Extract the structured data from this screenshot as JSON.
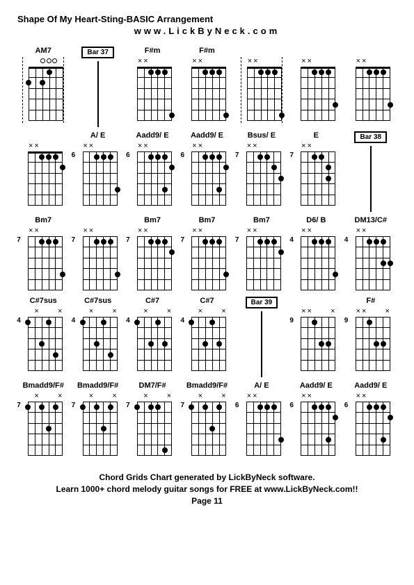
{
  "title": "Shape Of My Heart-Sting-BASIC Arrangement",
  "subtitle": "www.LickByNeck.com",
  "footer_line1": "Chord Grids Chart generated by LickByNeck software.",
  "footer_line2": "Learn 1000+ chord melody guitar songs for FREE at www.LickByNeck.com!!",
  "footer_page": "Page 11",
  "rows": [
    [
      {
        "type": "chord",
        "name": "AM7",
        "fret": "",
        "markers": [
          "",
          "",
          "o",
          "o",
          "o",
          ""
        ],
        "dots": [
          [
            1,
            3
          ],
          [
            2,
            0
          ],
          [
            2,
            2
          ]
        ],
        "dashed": true
      },
      {
        "type": "bar",
        "label": "Bar 37"
      },
      {
        "type": "chord",
        "name": "F#m",
        "fret": "",
        "markers": [
          "x",
          "x",
          "",
          "",
          "",
          ""
        ],
        "dots": [
          [
            1,
            2
          ],
          [
            1,
            3
          ],
          [
            1,
            4
          ],
          [
            5,
            5
          ]
        ]
      },
      {
        "type": "chord",
        "name": "F#m",
        "fret": "",
        "markers": [
          "x",
          "x",
          "",
          "",
          "",
          ""
        ],
        "dots": [
          [
            1,
            2
          ],
          [
            1,
            3
          ],
          [
            1,
            4
          ],
          [
            5,
            5
          ]
        ]
      },
      {
        "type": "chord",
        "name": "",
        "fret": "",
        "markers": [
          "x",
          "x",
          "",
          "",
          "",
          ""
        ],
        "dots": [
          [
            1,
            2
          ],
          [
            1,
            3
          ],
          [
            1,
            4
          ],
          [
            5,
            5
          ]
        ],
        "dashed": true
      },
      {
        "type": "chord",
        "name": "",
        "fret": "",
        "markers": [
          "x",
          "x",
          "",
          "",
          "",
          ""
        ],
        "dots": [
          [
            1,
            2
          ],
          [
            1,
            3
          ],
          [
            1,
            4
          ],
          [
            4,
            5
          ]
        ]
      },
      {
        "type": "chord",
        "name": "",
        "fret": "",
        "markers": [
          "x",
          "x",
          "",
          "",
          "",
          ""
        ],
        "dots": [
          [
            1,
            2
          ],
          [
            1,
            3
          ],
          [
            1,
            4
          ],
          [
            4,
            5
          ]
        ]
      }
    ],
    [
      {
        "type": "chord",
        "name": "",
        "fret": "",
        "markers": [
          "x",
          "x",
          "",
          "",
          "",
          ""
        ],
        "dots": [
          [
            1,
            2
          ],
          [
            1,
            3
          ],
          [
            1,
            4
          ],
          [
            2,
            5
          ]
        ]
      },
      {
        "type": "chord",
        "name": "A/ E",
        "fret": "6",
        "markers": [
          "x",
          "x",
          "",
          "",
          "",
          ""
        ],
        "dots": [
          [
            1,
            2
          ],
          [
            1,
            3
          ],
          [
            1,
            4
          ],
          [
            4,
            5
          ]
        ]
      },
      {
        "type": "chord",
        "name": "Aadd9/ E",
        "fret": "6",
        "markers": [
          "x",
          "x",
          "",
          "",
          "",
          ""
        ],
        "dots": [
          [
            1,
            2
          ],
          [
            1,
            3
          ],
          [
            1,
            4
          ],
          [
            4,
            4
          ],
          [
            2,
            5
          ]
        ]
      },
      {
        "type": "chord",
        "name": "Aadd9/ E",
        "fret": "6",
        "markers": [
          "x",
          "x",
          "",
          "",
          "",
          ""
        ],
        "dots": [
          [
            1,
            2
          ],
          [
            1,
            3
          ],
          [
            1,
            4
          ],
          [
            4,
            4
          ],
          [
            2,
            5
          ]
        ]
      },
      {
        "type": "chord",
        "name": "Bsus/ E",
        "fret": "7",
        "markers": [
          "x",
          "x",
          "",
          "",
          "",
          ""
        ],
        "dots": [
          [
            1,
            2
          ],
          [
            1,
            3
          ],
          [
            2,
            4
          ],
          [
            3,
            5
          ]
        ]
      },
      {
        "type": "chord",
        "name": "E",
        "fret": "7",
        "markers": [
          "x",
          "x",
          "",
          "",
          "",
          ""
        ],
        "dots": [
          [
            1,
            2
          ],
          [
            1,
            3
          ],
          [
            2,
            4
          ],
          [
            3,
            4
          ]
        ]
      },
      {
        "type": "bar",
        "label": "Bar 38"
      }
    ],
    [
      {
        "type": "chord",
        "name": "Bm7",
        "fret": "7",
        "markers": [
          "x",
          "x",
          "",
          "",
          "",
          ""
        ],
        "dots": [
          [
            1,
            2
          ],
          [
            1,
            3
          ],
          [
            1,
            4
          ],
          [
            4,
            5
          ]
        ]
      },
      {
        "type": "chord",
        "name": "",
        "fret": "7",
        "markers": [
          "x",
          "x",
          "",
          "",
          "",
          ""
        ],
        "dots": [
          [
            1,
            2
          ],
          [
            1,
            3
          ],
          [
            1,
            4
          ],
          [
            4,
            5
          ]
        ]
      },
      {
        "type": "chord",
        "name": "Bm7",
        "fret": "7",
        "markers": [
          "x",
          "x",
          "",
          "",
          "",
          ""
        ],
        "dots": [
          [
            1,
            2
          ],
          [
            1,
            3
          ],
          [
            1,
            4
          ],
          [
            2,
            5
          ]
        ]
      },
      {
        "type": "chord",
        "name": "Bm7",
        "fret": "7",
        "markers": [
          "x",
          "x",
          "",
          "",
          "",
          ""
        ],
        "dots": [
          [
            1,
            2
          ],
          [
            1,
            3
          ],
          [
            1,
            4
          ],
          [
            4,
            5
          ]
        ]
      },
      {
        "type": "chord",
        "name": "Bm7",
        "fret": "7",
        "markers": [
          "x",
          "x",
          "",
          "",
          "",
          ""
        ],
        "dots": [
          [
            1,
            2
          ],
          [
            1,
            3
          ],
          [
            1,
            4
          ],
          [
            2,
            5
          ]
        ]
      },
      {
        "type": "chord",
        "name": "D6/ B",
        "fret": "4",
        "markers": [
          "x",
          "x",
          "",
          "",
          "",
          ""
        ],
        "dots": [
          [
            1,
            2
          ],
          [
            1,
            3
          ],
          [
            1,
            4
          ],
          [
            4,
            5
          ]
        ]
      },
      {
        "type": "chord",
        "name": "DM13/C#",
        "fret": "4",
        "markers": [
          "x",
          "x",
          "",
          "",
          "",
          ""
        ],
        "dots": [
          [
            1,
            2
          ],
          [
            1,
            3
          ],
          [
            1,
            4
          ],
          [
            3,
            4
          ],
          [
            3,
            5
          ]
        ]
      }
    ],
    [
      {
        "type": "chord",
        "name": "C#7sus",
        "fret": "4",
        "markers": [
          "",
          "x",
          "",
          "",
          "",
          "x"
        ],
        "dots": [
          [
            1,
            0
          ],
          [
            3,
            2
          ],
          [
            1,
            3
          ],
          [
            4,
            4
          ]
        ]
      },
      {
        "type": "chord",
        "name": "C#7sus",
        "fret": "4",
        "markers": [
          "",
          "x",
          "",
          "",
          "",
          "x"
        ],
        "dots": [
          [
            1,
            0
          ],
          [
            3,
            2
          ],
          [
            1,
            3
          ],
          [
            4,
            4
          ]
        ]
      },
      {
        "type": "chord",
        "name": "C#7",
        "fret": "4",
        "markers": [
          "",
          "x",
          "",
          "",
          "",
          "x"
        ],
        "dots": [
          [
            1,
            0
          ],
          [
            3,
            2
          ],
          [
            1,
            3
          ],
          [
            3,
            4
          ]
        ]
      },
      {
        "type": "chord",
        "name": "C#7",
        "fret": "4",
        "markers": [
          "",
          "x",
          "",
          "",
          "",
          "x"
        ],
        "dots": [
          [
            1,
            0
          ],
          [
            3,
            2
          ],
          [
            1,
            3
          ],
          [
            3,
            4
          ]
        ]
      },
      {
        "type": "bar",
        "label": "Bar 39"
      },
      {
        "type": "chord",
        "name": "",
        "fret": "9",
        "markers": [
          "x",
          "x",
          "",
          "",
          "",
          "x"
        ],
        "dots": [
          [
            1,
            2
          ],
          [
            3,
            3
          ],
          [
            3,
            4
          ]
        ]
      },
      {
        "type": "chord",
        "name": "F#",
        "fret": "9",
        "markers": [
          "x",
          "x",
          "",
          "",
          "",
          "x"
        ],
        "dots": [
          [
            1,
            2
          ],
          [
            3,
            3
          ],
          [
            3,
            4
          ]
        ]
      }
    ],
    [
      {
        "type": "chord",
        "name": "Bmadd9/F#",
        "fret": "7",
        "markers": [
          "",
          "x",
          "",
          "",
          "",
          "x"
        ],
        "dots": [
          [
            1,
            0
          ],
          [
            1,
            2
          ],
          [
            3,
            3
          ],
          [
            1,
            4
          ]
        ]
      },
      {
        "type": "chord",
        "name": "Bmadd9/F#",
        "fret": "7",
        "markers": [
          "",
          "x",
          "",
          "",
          "",
          "x"
        ],
        "dots": [
          [
            1,
            0
          ],
          [
            1,
            2
          ],
          [
            3,
            3
          ],
          [
            1,
            4
          ]
        ]
      },
      {
        "type": "chord",
        "name": "DM7/F#",
        "fret": "7",
        "markers": [
          "",
          "x",
          "",
          "",
          "",
          "x"
        ],
        "dots": [
          [
            1,
            0
          ],
          [
            1,
            2
          ],
          [
            1,
            3
          ],
          [
            5,
            4
          ]
        ]
      },
      {
        "type": "chord",
        "name": "Bmadd9/F#",
        "fret": "7",
        "markers": [
          "",
          "x",
          "",
          "",
          "",
          "x"
        ],
        "dots": [
          [
            1,
            0
          ],
          [
            1,
            2
          ],
          [
            3,
            3
          ],
          [
            1,
            4
          ]
        ]
      },
      {
        "type": "chord",
        "name": "A/ E",
        "fret": "6",
        "markers": [
          "x",
          "x",
          "",
          "",
          "",
          ""
        ],
        "dots": [
          [
            1,
            2
          ],
          [
            1,
            3
          ],
          [
            1,
            4
          ],
          [
            4,
            5
          ]
        ]
      },
      {
        "type": "chord",
        "name": "Aadd9/ E",
        "fret": "6",
        "markers": [
          "x",
          "x",
          "",
          "",
          "",
          ""
        ],
        "dots": [
          [
            1,
            2
          ],
          [
            1,
            3
          ],
          [
            1,
            4
          ],
          [
            4,
            4
          ],
          [
            2,
            5
          ]
        ]
      },
      {
        "type": "chord",
        "name": "Aadd9/ E",
        "fret": "6",
        "markers": [
          "x",
          "x",
          "",
          "",
          "",
          ""
        ],
        "dots": [
          [
            1,
            2
          ],
          [
            1,
            3
          ],
          [
            1,
            4
          ],
          [
            4,
            4
          ],
          [
            2,
            5
          ]
        ]
      }
    ]
  ]
}
